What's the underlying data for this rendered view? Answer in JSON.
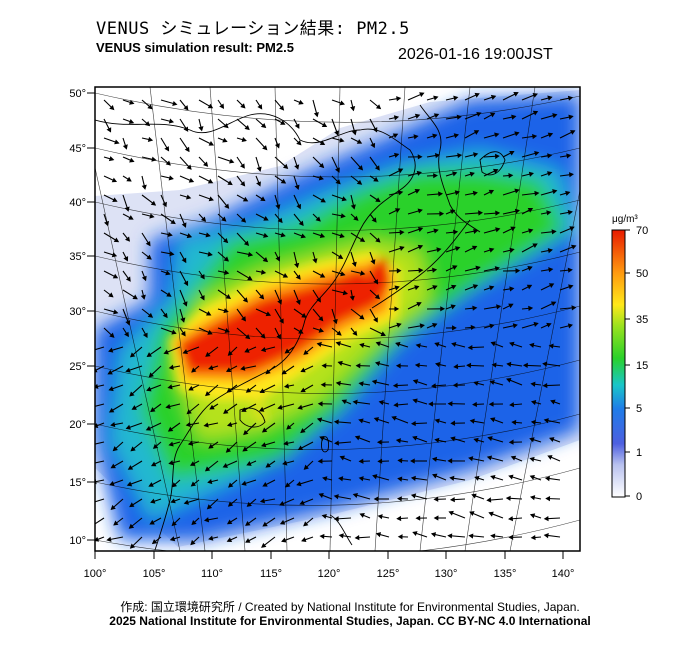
{
  "header": {
    "title_jp": "VENUS シミュレーション結果: PM2.5",
    "title_en": "VENUS simulation result: PM2.5",
    "timestamp": "2026-01-16 19:00JST"
  },
  "map": {
    "lat_labels": [
      "10°",
      "15°",
      "20°",
      "25°",
      "30°",
      "35°",
      "40°",
      "45°",
      "50°"
    ],
    "lon_labels": [
      "100°",
      "105°",
      "110°",
      "115°",
      "120°",
      "125°",
      "130°",
      "135°",
      "140°"
    ],
    "colors": {
      "very_low": "#dde2f5",
      "low": "#1f63e8",
      "mid": "#2ad12a",
      "high": "#ffe81a",
      "very_high": "#ee2200"
    }
  },
  "colorbar": {
    "unit": "μg/m³",
    "ticks": [
      "70",
      "50",
      "35",
      "15",
      "5",
      "1",
      "0"
    ]
  },
  "footer": {
    "credit": "作成: 国立環境研究所 / Created by National Institute for Environmental Studies, Japan.",
    "license": "2025 National Institute for Environmental Studies, Japan. CC BY-NC 4.0 International"
  }
}
